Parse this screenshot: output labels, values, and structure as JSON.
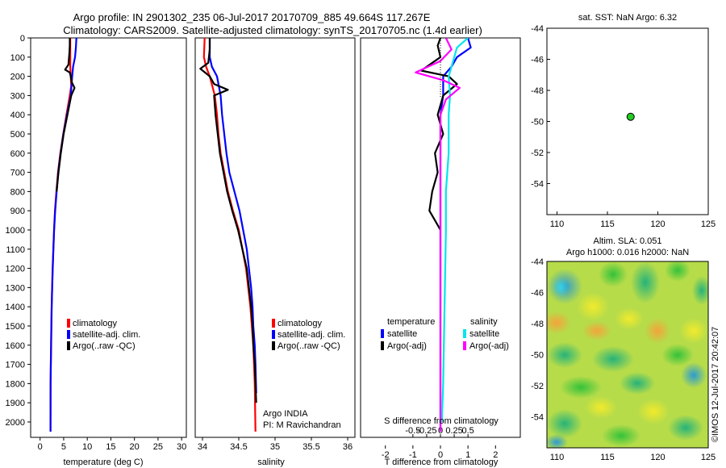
{
  "title": {
    "line1": "Argo profile: IN 2901302_235 06-Jul-2017 20170709_885 49.664S 117.267E",
    "line2": "Climatology: CARS2009. Satellite-adjusted climatology: synTS_20170705.nc (1.4d earlier)"
  },
  "credit": "©IMOS 12-Jul-2017 20:42:07",
  "colors": {
    "climatology": "#ff0000",
    "satellite": "#0000ff",
    "argo": "#000000",
    "sal_satellite": "#00e5ee",
    "sal_argo": "#ff00ff",
    "marker": "#22cc22"
  },
  "chart_data": [
    {
      "id": "temperature",
      "type": "line",
      "xlabel": "temperature (deg C)",
      "ylabel": "",
      "xlim": [
        -2,
        31
      ],
      "ylim": [
        2080,
        0
      ],
      "xticks": [
        0,
        5,
        10,
        15,
        20,
        25,
        30
      ],
      "xtick_labels": [
        "0",
        "5",
        "10",
        "15",
        "20",
        "25",
        "30"
      ],
      "yticks": [
        0,
        100,
        200,
        300,
        400,
        500,
        600,
        700,
        800,
        900,
        1000,
        1100,
        1200,
        1300,
        1400,
        1500,
        1600,
        1700,
        1800,
        1900,
        2000
      ],
      "ytick_labels": [
        "0",
        "100",
        "200",
        "300",
        "400",
        "500",
        "600",
        "700",
        "800",
        "900",
        "1000",
        "1100",
        "1200",
        "1300",
        "1400",
        "1500",
        "1600",
        "1700",
        "1800",
        "1900",
        "2000"
      ],
      "legend": [
        "climatology",
        "satellite-adj. clim.",
        "Argo(..raw -QC)"
      ],
      "series": [
        {
          "name": "climatology",
          "color": "#ff0000",
          "x": [
            6.4,
            6.4,
            6.4,
            6.5,
            6.6,
            6.3,
            5.6,
            4.9,
            4.3,
            3.8,
            3.45,
            3.15,
            2.95,
            2.8,
            2.65,
            2.55,
            2.45,
            2.38,
            2.32,
            2.27,
            2.22,
            2.2
          ],
          "y": [
            0,
            100,
            150,
            200,
            250,
            300,
            400,
            500,
            600,
            700,
            800,
            900,
            1000,
            1100,
            1200,
            1300,
            1400,
            1500,
            1600,
            1700,
            1800,
            2050
          ]
        },
        {
          "name": "satellite-adj. clim.",
          "color": "#0000ff",
          "x": [
            7.7,
            7.6,
            7.4,
            7.0,
            6.8,
            6.5,
            5.7,
            4.95,
            4.35,
            3.85,
            3.5,
            3.2,
            2.98,
            2.82,
            2.68,
            2.57,
            2.47,
            2.4,
            2.34,
            2.28,
            2.23,
            2.2
          ],
          "y": [
            0,
            50,
            100,
            150,
            200,
            300,
            400,
            500,
            600,
            700,
            800,
            900,
            1000,
            1100,
            1200,
            1300,
            1400,
            1500,
            1600,
            1700,
            1800,
            2050
          ]
        },
        {
          "name": "Argo(..raw -QC)",
          "color": "#000000",
          "x": [
            6.3,
            6.3,
            6.2,
            6.0,
            5.3,
            6.3,
            6.5,
            6.7,
            7.3,
            6.6,
            5.8,
            5.0,
            4.4,
            3.9,
            3.5
          ],
          "y": [
            0,
            40,
            80,
            140,
            165,
            180,
            200,
            230,
            260,
            300,
            400,
            500,
            600,
            700,
            800
          ]
        }
      ]
    },
    {
      "id": "salinity",
      "type": "line",
      "xlabel": "salinity",
      "xlim": [
        33.9,
        36.1
      ],
      "ylim": [
        2080,
        0
      ],
      "xticks": [
        34,
        34.5,
        35,
        35.5,
        36
      ],
      "xtick_labels": [
        "34",
        "34.5",
        "35",
        "35.5",
        "36"
      ],
      "legend": [
        "climatology",
        "satellite-adj. clim.",
        "Argo(..raw -QC)"
      ],
      "annotation": [
        "Argo INDIA",
        "PI: M Ravichandran"
      ],
      "series": [
        {
          "name": "climatology",
          "color": "#ff0000",
          "x": [
            34.03,
            34.02,
            34.05,
            34.1,
            34.17,
            34.2,
            34.22,
            34.25,
            34.3,
            34.35,
            34.42,
            34.5,
            34.55,
            34.6,
            34.63,
            34.66,
            34.68,
            34.7,
            34.71,
            34.72,
            34.73
          ],
          "y": [
            0,
            100,
            150,
            200,
            300,
            400,
            500,
            600,
            700,
            800,
            900,
            1000,
            1100,
            1200,
            1300,
            1400,
            1500,
            1600,
            1700,
            1800,
            2050
          ]
        },
        {
          "name": "satellite-adj. clim.",
          "color": "#0000ff",
          "x": [
            34.1,
            34.1,
            34.1,
            34.13,
            34.2,
            34.25,
            34.27,
            34.3,
            34.33,
            34.37,
            34.44,
            34.51,
            34.56,
            34.61,
            34.64,
            34.67,
            34.69,
            34.7,
            34.72,
            34.73,
            34.74
          ],
          "y": [
            0,
            50,
            100,
            150,
            200,
            300,
            400,
            500,
            600,
            700,
            800,
            900,
            1000,
            1100,
            1200,
            1300,
            1400,
            1500,
            1600,
            1700,
            1850
          ]
        },
        {
          "name": "Argo(..raw -QC)",
          "color": "#000000",
          "x": [
            34.1,
            34.1,
            34.08,
            33.97,
            34.1,
            34.16,
            34.35,
            34.16,
            34.18,
            34.21,
            34.24,
            34.29,
            34.34,
            34.41,
            34.49,
            34.55,
            34.61,
            34.64,
            34.67,
            34.69,
            34.7,
            34.72,
            34.73,
            34.74
          ],
          "y": [
            0,
            60,
            130,
            160,
            200,
            240,
            270,
            300,
            400,
            500,
            600,
            700,
            800,
            900,
            1000,
            1100,
            1200,
            1300,
            1400,
            1500,
            1600,
            1700,
            1800,
            1900
          ]
        }
      ]
    },
    {
      "id": "difference",
      "type": "line",
      "xlabel": "T difference from climatology",
      "xlabel_top": "S difference from climatology",
      "xlim": [
        -2.9,
        2.9
      ],
      "ylim": [
        2080,
        0
      ],
      "xticks": [
        -2,
        -1,
        0,
        1,
        2
      ],
      "xtick_labels": [
        "-2",
        "-1",
        "0",
        "1",
        "2"
      ],
      "sticks": [
        -0.5,
        -0.25,
        0,
        0.25,
        0.5
      ],
      "stick_labels": [
        "-0.5",
        "-0.25",
        "0",
        "0.25",
        "0.5"
      ],
      "legend_temp_title": "temperature",
      "legend_sal_title": "salinity",
      "legend_temp": [
        "satellite",
        "Argo(-adj)"
      ],
      "legend_sal": [
        "satellite",
        "Argo(-adj)"
      ],
      "series": [
        {
          "name": "T satellite",
          "color": "#0000ff",
          "x": [
            1.0,
            1.1,
            0.6,
            0.4,
            0.1,
            0.1,
            0.0,
            0.0,
            0.0,
            0.0,
            0.0,
            0.0,
            0.0,
            0.0,
            0.0
          ],
          "y": [
            0,
            50,
            100,
            150,
            200,
            300,
            400,
            500,
            600,
            700,
            800,
            1000,
            1400,
            1800,
            2050
          ]
        },
        {
          "name": "T Argo(-adj)",
          "color": "#000000",
          "x": [
            0.0,
            -0.1,
            0.0,
            -0.7,
            0.3,
            0.6,
            0.1,
            -0.1,
            0.1,
            -0.2,
            -0.1,
            -0.3,
            -0.4,
            -0.2,
            0.0
          ],
          "y": [
            0,
            40,
            100,
            170,
            200,
            240,
            300,
            400,
            500,
            600,
            700,
            800,
            900,
            950,
            1000
          ]
        },
        {
          "name": "S satellite",
          "color": "#00e5ee",
          "x": [
            1.0,
            0.6,
            0.5,
            0.4,
            0.3,
            0.35,
            0.3,
            0.3,
            0.2,
            0.2,
            0.15,
            0.1,
            0.05
          ],
          "y": [
            0,
            50,
            100,
            150,
            200,
            300,
            400,
            600,
            800,
            1000,
            1400,
            1800,
            2000
          ]
        },
        {
          "name": "S Argo(-adj)",
          "color": "#ff00ff",
          "x": [
            0.2,
            0.4,
            0.0,
            -0.9,
            0.1,
            0.7,
            0.2,
            0.0,
            0.0,
            0.0,
            0.0,
            0.0,
            0.0
          ],
          "y": [
            0,
            60,
            120,
            180,
            220,
            260,
            320,
            400,
            600,
            800,
            1200,
            1800,
            2050
          ]
        }
      ]
    },
    {
      "id": "position",
      "type": "scatter",
      "title": "sat. SST: NaN Argo: 6.32",
      "xlim": [
        109,
        125
      ],
      "ylim": [
        -56,
        -44
      ],
      "xticks": [
        110,
        115,
        120,
        125
      ],
      "xtick_labels": [
        "110",
        "115",
        "120",
        "125"
      ],
      "yticks": [
        -44,
        -46,
        -48,
        -50,
        -52,
        -54
      ],
      "ytick_labels": [
        "-44",
        "-46",
        "-48",
        "-50",
        "-52",
        "-54"
      ],
      "points": [
        {
          "x": 117.3,
          "y": -49.7
        }
      ]
    },
    {
      "id": "sla_map",
      "type": "heatmap",
      "title_line1": "Altim. SLA: 0.051",
      "title_line2": "Argo h1000: 0.016 h2000: NaN",
      "xlim": [
        109,
        125
      ],
      "ylim": [
        -56,
        -44
      ],
      "xticks": [
        110,
        115,
        120,
        125
      ],
      "xtick_labels": [
        "110",
        "115",
        "120",
        "125"
      ],
      "yticks": [
        -44,
        -46,
        -48,
        -50,
        -52,
        -54
      ],
      "ytick_labels": [
        "-44",
        "-46",
        "-48",
        "-50",
        "-52",
        "-54"
      ]
    }
  ]
}
